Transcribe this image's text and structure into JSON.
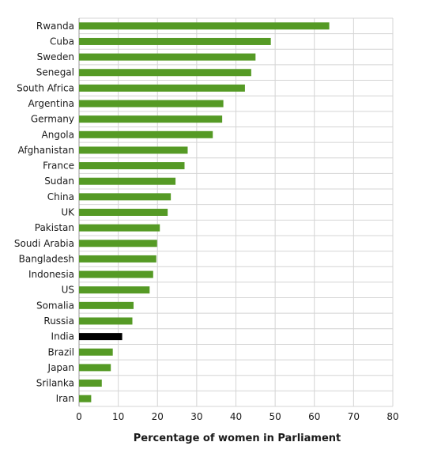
{
  "chart_data": {
    "type": "bar",
    "orientation": "horizontal",
    "categories": [
      "Rwanda",
      "Cuba",
      "Sweden",
      "Senegal",
      "South Africa",
      "Argentina",
      "Germany",
      "Angola",
      "Afghanistan",
      "France",
      "Sudan",
      "China",
      "UK",
      "Pakistan",
      "Soudi Arabia",
      "Bangladesh",
      "Indonesia",
      "US",
      "Somalia",
      "Russia",
      "India",
      "Brazil",
      "Japan",
      "Srilanka",
      "Iran"
    ],
    "values": [
      63.8,
      48.9,
      45.0,
      43.9,
      42.3,
      36.8,
      36.5,
      34.1,
      27.7,
      26.9,
      24.6,
      23.4,
      22.6,
      20.6,
      19.9,
      19.7,
      18.9,
      18.0,
      13.9,
      13.6,
      11.0,
      8.6,
      8.1,
      5.8,
      3.1
    ],
    "highlight": {
      "category": "India",
      "color": "#000000"
    },
    "bar_color": "#559a25",
    "xlabel": "Percentage of women in Parliament",
    "ylabel": "",
    "title": "",
    "xlim": [
      0,
      80
    ],
    "xticks": [
      0,
      10,
      20,
      30,
      40,
      50,
      60,
      70,
      80
    ],
    "xtick_labels": [
      "0",
      "10",
      "20",
      "30",
      "40",
      "50",
      "60",
      "70",
      "80"
    ],
    "grid": true,
    "legend": "none"
  }
}
